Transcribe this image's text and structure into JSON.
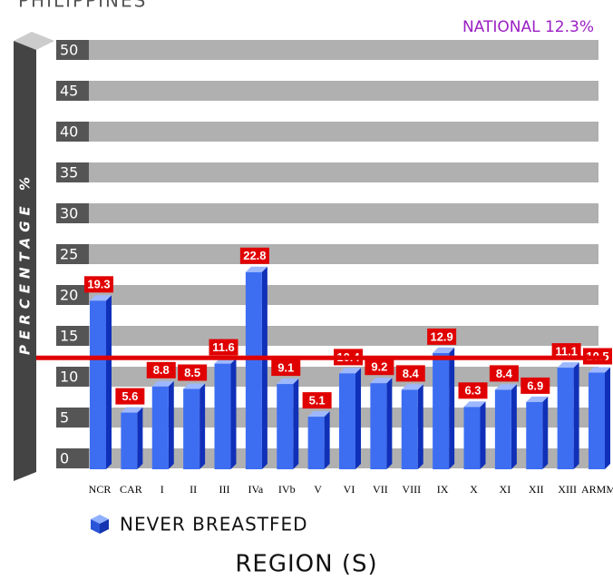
{
  "chart_data": {
    "type": "bar",
    "title": "PHILIPPINES",
    "ylabel": "PERCENTAGE %",
    "xlabel": "REGION (S)",
    "categories": [
      "NCR",
      "CAR",
      "I",
      "II",
      "III",
      "IVa",
      "IVb",
      "V",
      "VI",
      "VII",
      "VIII",
      "IX",
      "X",
      "XI",
      "XII",
      "XIII",
      "ARMM"
    ],
    "series": [
      {
        "name": "NEVER BREASTFED",
        "color": "#3d6ef2",
        "values": [
          19.3,
          5.6,
          8.8,
          8.5,
          11.6,
          22.8,
          9.1,
          5.1,
          10.4,
          9.2,
          8.4,
          12.9,
          6.3,
          8.4,
          6.9,
          11.1,
          10.5
        ]
      }
    ],
    "reference_line": {
      "value": 12.3,
      "label": "NATIONAL 12.3%",
      "color": "#e00000",
      "label_color": "#9b1fc4"
    },
    "ylim": [
      0,
      50
    ],
    "yticks": [
      0,
      5,
      10,
      15,
      20,
      25,
      30,
      35,
      40,
      45,
      50
    ],
    "grid": true
  }
}
